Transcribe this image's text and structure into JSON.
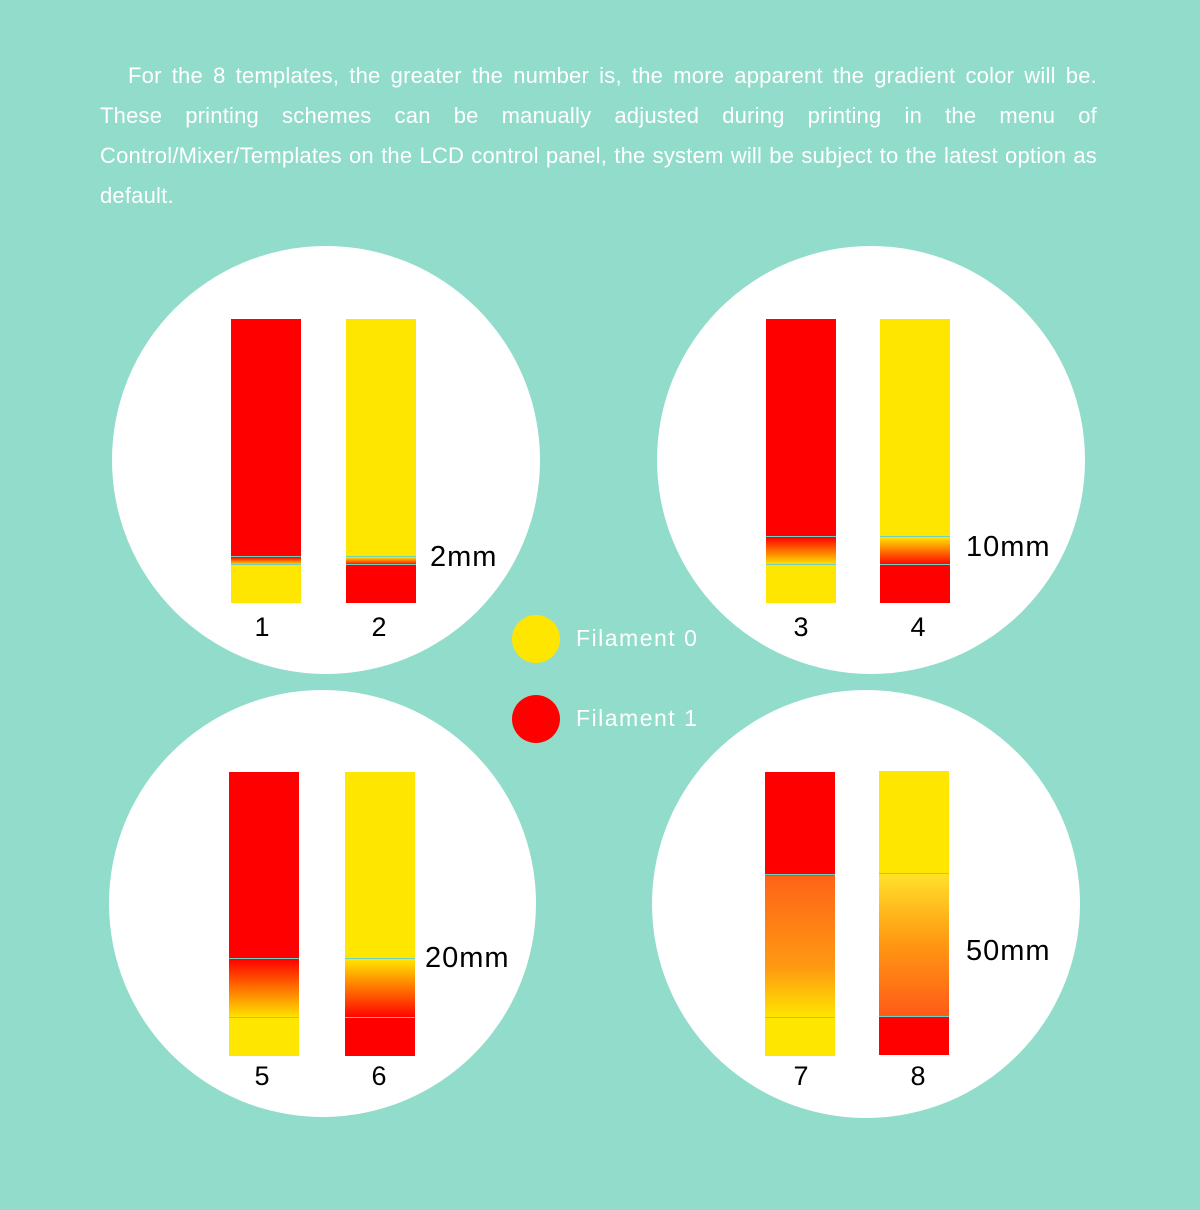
{
  "intro_text": "For the 8 templates, the greater the number is, the more apparent the gradient color will be. These printing schemes can be manually adjusted during printing in the menu of Control/Mixer/Templates  on the LCD control panel, the system will be subject to the latest option as default.",
  "colors": {
    "background": "#91dccb",
    "filament0": "#ffe600",
    "filament1": "#ff0000",
    "divider": "#6fd1c4"
  },
  "legend": [
    {
      "label": "Filament 0",
      "color": "#ffe600"
    },
    {
      "label": "Filament 1",
      "color": "#ff0000"
    }
  ],
  "groups": [
    {
      "transition_label": "2mm",
      "templates": [
        {
          "number": "1",
          "top": "Filament 1",
          "bottom": "Filament 0"
        },
        {
          "number": "2",
          "top": "Filament 0",
          "bottom": "Filament 1"
        }
      ]
    },
    {
      "transition_label": "10mm",
      "templates": [
        {
          "number": "3",
          "top": "Filament 1",
          "bottom": "Filament 0"
        },
        {
          "number": "4",
          "top": "Filament 0",
          "bottom": "Filament 1"
        }
      ]
    },
    {
      "transition_label": "20mm",
      "templates": [
        {
          "number": "5",
          "top": "Filament 1",
          "bottom": "Filament 0"
        },
        {
          "number": "6",
          "top": "Filament 0",
          "bottom": "Filament 1"
        }
      ]
    },
    {
      "transition_label": "50mm",
      "templates": [
        {
          "number": "7",
          "top": "Filament 1",
          "bottom": "Filament 0"
        },
        {
          "number": "8",
          "top": "Filament 0",
          "bottom": "Filament 1"
        }
      ]
    }
  ]
}
